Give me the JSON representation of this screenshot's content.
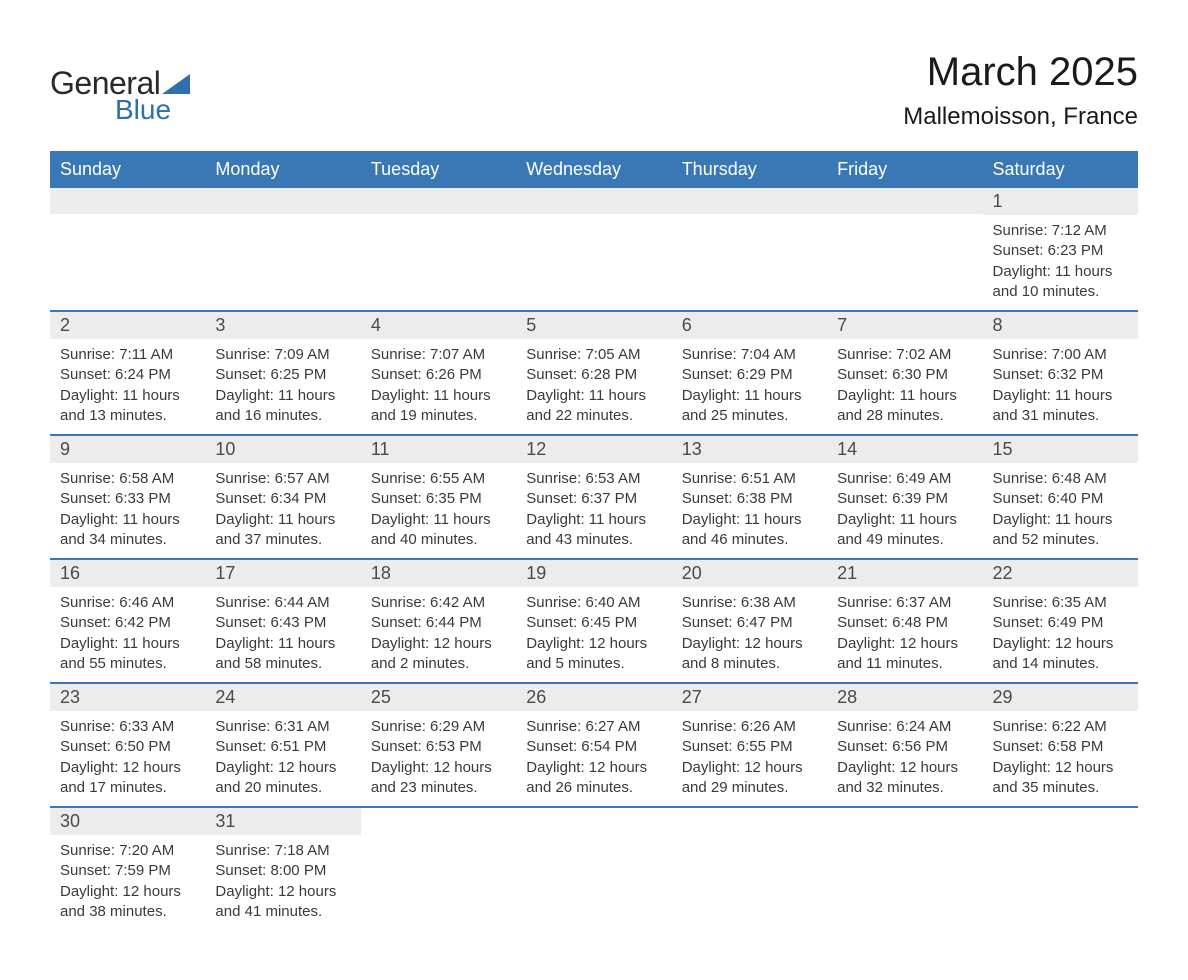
{
  "brand": {
    "word1": "General",
    "word2": "Blue",
    "text_color": "#2a2a2a",
    "accent_color": "#2f6fb0"
  },
  "title": "March 2025",
  "location": "Mallemoisson, France",
  "colors": {
    "header_bg": "#3a77b5",
    "header_text": "#ffffff",
    "daystrip_bg": "#ececec",
    "daystrip_text": "#4a4a4a",
    "body_text": "#3a3a3a",
    "row_border": "#3a77b5",
    "page_bg": "#ffffff"
  },
  "typography": {
    "title_fontsize": 40,
    "subtitle_fontsize": 24,
    "header_fontsize": 18,
    "daynum_fontsize": 18,
    "cell_fontsize": 15
  },
  "columns": [
    "Sunday",
    "Monday",
    "Tuesday",
    "Wednesday",
    "Thursday",
    "Friday",
    "Saturday"
  ],
  "weeks": [
    [
      {
        "day": "",
        "sunrise": "",
        "sunset": "",
        "daylight1": "",
        "daylight2": ""
      },
      {
        "day": "",
        "sunrise": "",
        "sunset": "",
        "daylight1": "",
        "daylight2": ""
      },
      {
        "day": "",
        "sunrise": "",
        "sunset": "",
        "daylight1": "",
        "daylight2": ""
      },
      {
        "day": "",
        "sunrise": "",
        "sunset": "",
        "daylight1": "",
        "daylight2": ""
      },
      {
        "day": "",
        "sunrise": "",
        "sunset": "",
        "daylight1": "",
        "daylight2": ""
      },
      {
        "day": "",
        "sunrise": "",
        "sunset": "",
        "daylight1": "",
        "daylight2": ""
      },
      {
        "day": "1",
        "sunrise": "Sunrise: 7:12 AM",
        "sunset": "Sunset: 6:23 PM",
        "daylight1": "Daylight: 11 hours",
        "daylight2": "and 10 minutes."
      }
    ],
    [
      {
        "day": "2",
        "sunrise": "Sunrise: 7:11 AM",
        "sunset": "Sunset: 6:24 PM",
        "daylight1": "Daylight: 11 hours",
        "daylight2": "and 13 minutes."
      },
      {
        "day": "3",
        "sunrise": "Sunrise: 7:09 AM",
        "sunset": "Sunset: 6:25 PM",
        "daylight1": "Daylight: 11 hours",
        "daylight2": "and 16 minutes."
      },
      {
        "day": "4",
        "sunrise": "Sunrise: 7:07 AM",
        "sunset": "Sunset: 6:26 PM",
        "daylight1": "Daylight: 11 hours",
        "daylight2": "and 19 minutes."
      },
      {
        "day": "5",
        "sunrise": "Sunrise: 7:05 AM",
        "sunset": "Sunset: 6:28 PM",
        "daylight1": "Daylight: 11 hours",
        "daylight2": "and 22 minutes."
      },
      {
        "day": "6",
        "sunrise": "Sunrise: 7:04 AM",
        "sunset": "Sunset: 6:29 PM",
        "daylight1": "Daylight: 11 hours",
        "daylight2": "and 25 minutes."
      },
      {
        "day": "7",
        "sunrise": "Sunrise: 7:02 AM",
        "sunset": "Sunset: 6:30 PM",
        "daylight1": "Daylight: 11 hours",
        "daylight2": "and 28 minutes."
      },
      {
        "day": "8",
        "sunrise": "Sunrise: 7:00 AM",
        "sunset": "Sunset: 6:32 PM",
        "daylight1": "Daylight: 11 hours",
        "daylight2": "and 31 minutes."
      }
    ],
    [
      {
        "day": "9",
        "sunrise": "Sunrise: 6:58 AM",
        "sunset": "Sunset: 6:33 PM",
        "daylight1": "Daylight: 11 hours",
        "daylight2": "and 34 minutes."
      },
      {
        "day": "10",
        "sunrise": "Sunrise: 6:57 AM",
        "sunset": "Sunset: 6:34 PM",
        "daylight1": "Daylight: 11 hours",
        "daylight2": "and 37 minutes."
      },
      {
        "day": "11",
        "sunrise": "Sunrise: 6:55 AM",
        "sunset": "Sunset: 6:35 PM",
        "daylight1": "Daylight: 11 hours",
        "daylight2": "and 40 minutes."
      },
      {
        "day": "12",
        "sunrise": "Sunrise: 6:53 AM",
        "sunset": "Sunset: 6:37 PM",
        "daylight1": "Daylight: 11 hours",
        "daylight2": "and 43 minutes."
      },
      {
        "day": "13",
        "sunrise": "Sunrise: 6:51 AM",
        "sunset": "Sunset: 6:38 PM",
        "daylight1": "Daylight: 11 hours",
        "daylight2": "and 46 minutes."
      },
      {
        "day": "14",
        "sunrise": "Sunrise: 6:49 AM",
        "sunset": "Sunset: 6:39 PM",
        "daylight1": "Daylight: 11 hours",
        "daylight2": "and 49 minutes."
      },
      {
        "day": "15",
        "sunrise": "Sunrise: 6:48 AM",
        "sunset": "Sunset: 6:40 PM",
        "daylight1": "Daylight: 11 hours",
        "daylight2": "and 52 minutes."
      }
    ],
    [
      {
        "day": "16",
        "sunrise": "Sunrise: 6:46 AM",
        "sunset": "Sunset: 6:42 PM",
        "daylight1": "Daylight: 11 hours",
        "daylight2": "and 55 minutes."
      },
      {
        "day": "17",
        "sunrise": "Sunrise: 6:44 AM",
        "sunset": "Sunset: 6:43 PM",
        "daylight1": "Daylight: 11 hours",
        "daylight2": "and 58 minutes."
      },
      {
        "day": "18",
        "sunrise": "Sunrise: 6:42 AM",
        "sunset": "Sunset: 6:44 PM",
        "daylight1": "Daylight: 12 hours",
        "daylight2": "and 2 minutes."
      },
      {
        "day": "19",
        "sunrise": "Sunrise: 6:40 AM",
        "sunset": "Sunset: 6:45 PM",
        "daylight1": "Daylight: 12 hours",
        "daylight2": "and 5 minutes."
      },
      {
        "day": "20",
        "sunrise": "Sunrise: 6:38 AM",
        "sunset": "Sunset: 6:47 PM",
        "daylight1": "Daylight: 12 hours",
        "daylight2": "and 8 minutes."
      },
      {
        "day": "21",
        "sunrise": "Sunrise: 6:37 AM",
        "sunset": "Sunset: 6:48 PM",
        "daylight1": "Daylight: 12 hours",
        "daylight2": "and 11 minutes."
      },
      {
        "day": "22",
        "sunrise": "Sunrise: 6:35 AM",
        "sunset": "Sunset: 6:49 PM",
        "daylight1": "Daylight: 12 hours",
        "daylight2": "and 14 minutes."
      }
    ],
    [
      {
        "day": "23",
        "sunrise": "Sunrise: 6:33 AM",
        "sunset": "Sunset: 6:50 PM",
        "daylight1": "Daylight: 12 hours",
        "daylight2": "and 17 minutes."
      },
      {
        "day": "24",
        "sunrise": "Sunrise: 6:31 AM",
        "sunset": "Sunset: 6:51 PM",
        "daylight1": "Daylight: 12 hours",
        "daylight2": "and 20 minutes."
      },
      {
        "day": "25",
        "sunrise": "Sunrise: 6:29 AM",
        "sunset": "Sunset: 6:53 PM",
        "daylight1": "Daylight: 12 hours",
        "daylight2": "and 23 minutes."
      },
      {
        "day": "26",
        "sunrise": "Sunrise: 6:27 AM",
        "sunset": "Sunset: 6:54 PM",
        "daylight1": "Daylight: 12 hours",
        "daylight2": "and 26 minutes."
      },
      {
        "day": "27",
        "sunrise": "Sunrise: 6:26 AM",
        "sunset": "Sunset: 6:55 PM",
        "daylight1": "Daylight: 12 hours",
        "daylight2": "and 29 minutes."
      },
      {
        "day": "28",
        "sunrise": "Sunrise: 6:24 AM",
        "sunset": "Sunset: 6:56 PM",
        "daylight1": "Daylight: 12 hours",
        "daylight2": "and 32 minutes."
      },
      {
        "day": "29",
        "sunrise": "Sunrise: 6:22 AM",
        "sunset": "Sunset: 6:58 PM",
        "daylight1": "Daylight: 12 hours",
        "daylight2": "and 35 minutes."
      }
    ],
    [
      {
        "day": "30",
        "sunrise": "Sunrise: 7:20 AM",
        "sunset": "Sunset: 7:59 PM",
        "daylight1": "Daylight: 12 hours",
        "daylight2": "and 38 minutes."
      },
      {
        "day": "31",
        "sunrise": "Sunrise: 7:18 AM",
        "sunset": "Sunset: 8:00 PM",
        "daylight1": "Daylight: 12 hours",
        "daylight2": "and 41 minutes."
      },
      {
        "day": "",
        "sunrise": "",
        "sunset": "",
        "daylight1": "",
        "daylight2": ""
      },
      {
        "day": "",
        "sunrise": "",
        "sunset": "",
        "daylight1": "",
        "daylight2": ""
      },
      {
        "day": "",
        "sunrise": "",
        "sunset": "",
        "daylight1": "",
        "daylight2": ""
      },
      {
        "day": "",
        "sunrise": "",
        "sunset": "",
        "daylight1": "",
        "daylight2": ""
      },
      {
        "day": "",
        "sunrise": "",
        "sunset": "",
        "daylight1": "",
        "daylight2": ""
      }
    ]
  ]
}
